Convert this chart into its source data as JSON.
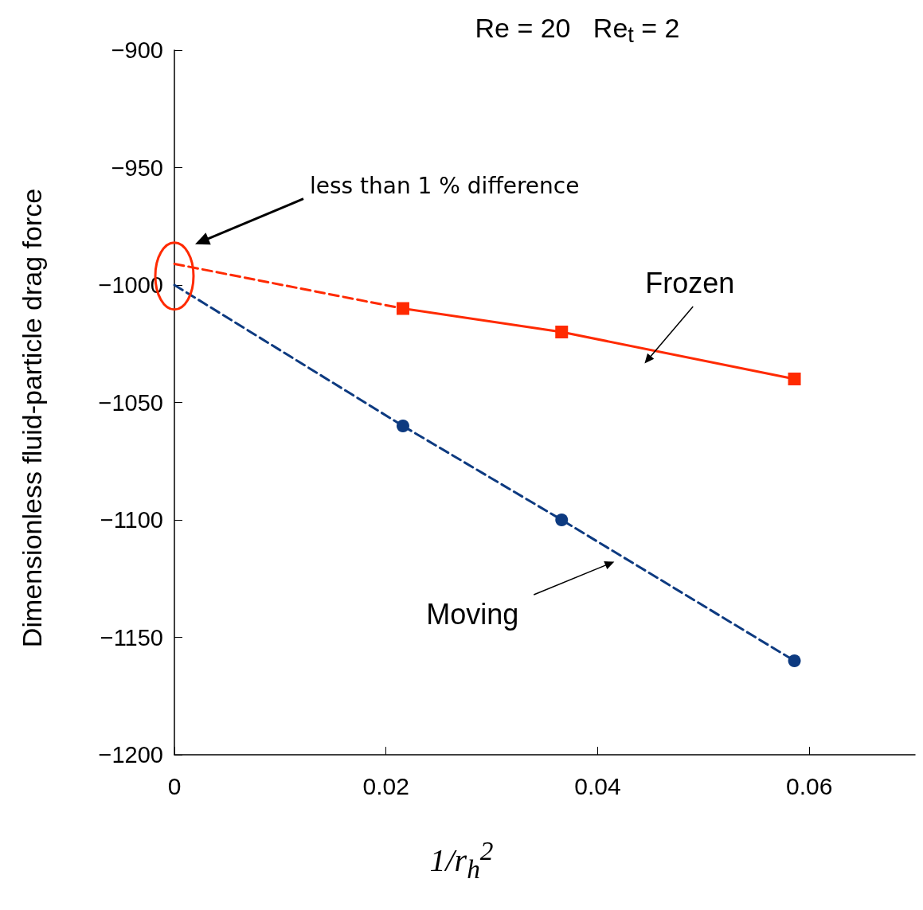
{
  "chart_data": {
    "type": "line",
    "title": "Re = 20   Re$_{t}$ = 2",
    "xlabel": "1/r$_{h}$$^{2}$",
    "ylabel": "Dimensionless fluid-particle drag force",
    "series": [
      {
        "name": "Frozen",
        "color": "#ff2a00",
        "x": [
          0.0216,
          0.0366,
          0.0586
        ],
        "values": [
          -1010,
          -1020,
          -1040
        ],
        "marker": "square",
        "line_style": "solid"
      },
      {
        "color": "#ff2a00",
        "x": [
          0,
          0.0216
        ],
        "values": [
          -991,
          -1010
        ],
        "marker": "none",
        "line_style": "dashed"
      },
      {
        "name": "Moving",
        "color": "#0d3a80",
        "x": [
          0.0216,
          0.0366,
          0.0586
        ],
        "values": [
          -1060,
          -1100,
          -1160
        ],
        "marker": "circle",
        "line_style": "dashed"
      },
      {
        "color": "#0d3a80",
        "x": [
          0,
          0.0216
        ],
        "values": [
          -1000,
          -1060
        ],
        "marker": "none",
        "line_style": "dashed"
      }
    ],
    "annotations": [
      "less than 1 % difference"
    ],
    "xlim": [
      0,
      0.07
    ],
    "xticks": [
      0,
      0.02,
      0.04,
      0.06
    ],
    "ylim": [
      -1200,
      -900
    ],
    "yticks": [
      {
        "value": -1200,
        "label": "−1200"
      },
      {
        "value": -1150,
        "label": "−1150"
      },
      {
        "value": -1100,
        "label": "−1100"
      },
      {
        "value": -1050,
        "label": "−1050"
      },
      {
        "value": -1000,
        "label": "−1000"
      },
      {
        "value": -950,
        "label": "−950"
      },
      {
        "value": -900,
        "label": "−900"
      }
    ],
    "grid": false,
    "legend": false
  }
}
